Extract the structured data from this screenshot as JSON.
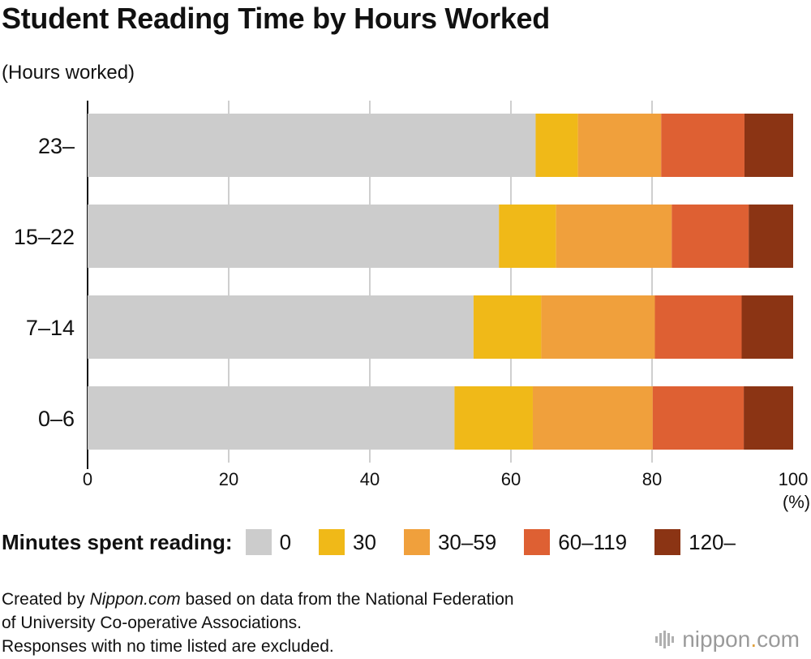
{
  "chart_data": {
    "type": "bar",
    "orientation": "horizontal",
    "stacked": true,
    "title": "Student Reading Time by Hours Worked",
    "ylabel": "(Hours worked)",
    "xlabel": "(%)",
    "xlim": [
      0,
      100
    ],
    "x_ticks": [
      0,
      20,
      40,
      60,
      80,
      100
    ],
    "grid": true,
    "legend_title": "Minutes spent reading:",
    "legend_position": "bottom",
    "categories": [
      "23–",
      "15–22",
      "7–14",
      "0–6"
    ],
    "series": [
      {
        "name": "0",
        "color": "#cccccc",
        "values": [
          63.5,
          58.3,
          54.7,
          52.0
        ]
      },
      {
        "name": "30",
        "color": "#f0b918",
        "values": [
          6.0,
          8.1,
          9.6,
          11.1
        ]
      },
      {
        "name": "30–59",
        "color": "#f0a03c",
        "values": [
          11.8,
          16.4,
          16.1,
          17.0
        ]
      },
      {
        "name": "60–119",
        "color": "#de6033",
        "values": [
          11.8,
          10.9,
          12.3,
          12.9
        ]
      },
      {
        "name": "120–",
        "color": "#8b3414",
        "values": [
          6.9,
          6.3,
          7.3,
          7.0
        ]
      }
    ]
  },
  "source": {
    "line1_prefix": "Created by ",
    "line1_italic": "Nippon.com",
    "line1_suffix": " based on data from the National Federation",
    "line2": "of University Co-operative Associations.",
    "line3": "Responses with no time listed are excluded."
  },
  "brand": {
    "name": "nippon",
    "dot": ".",
    "tld": "com"
  }
}
